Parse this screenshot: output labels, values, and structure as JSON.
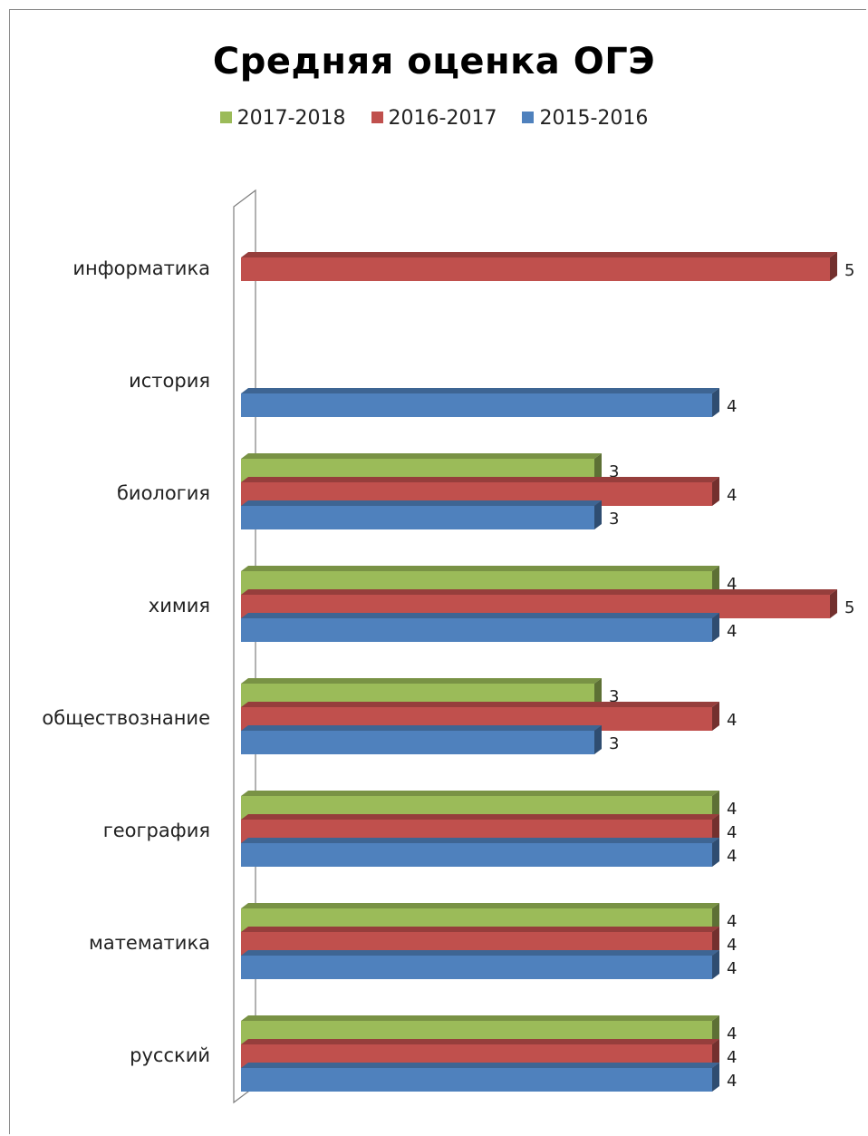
{
  "chart_data": {
    "type": "bar",
    "orientation": "horizontal",
    "title": "Средняя оценка ОГЭ",
    "categories": [
      "информатика",
      "история",
      "биология",
      "химия",
      "обществознание",
      "география",
      "математика",
      "русский"
    ],
    "series": [
      {
        "name": "2017-2018",
        "color": "#9bbb59",
        "values": [
          null,
          null,
          3,
          4,
          3,
          4,
          4,
          4
        ]
      },
      {
        "name": "2016-2017",
        "color": "#c0504d",
        "values": [
          5,
          null,
          4,
          5,
          4,
          4,
          4,
          4
        ]
      },
      {
        "name": "2015-2016",
        "color": "#4f81bd",
        "values": [
          null,
          4,
          3,
          4,
          3,
          4,
          4,
          4
        ]
      }
    ],
    "legend_position": "top",
    "xlim": [
      0,
      5
    ],
    "grid": false
  }
}
